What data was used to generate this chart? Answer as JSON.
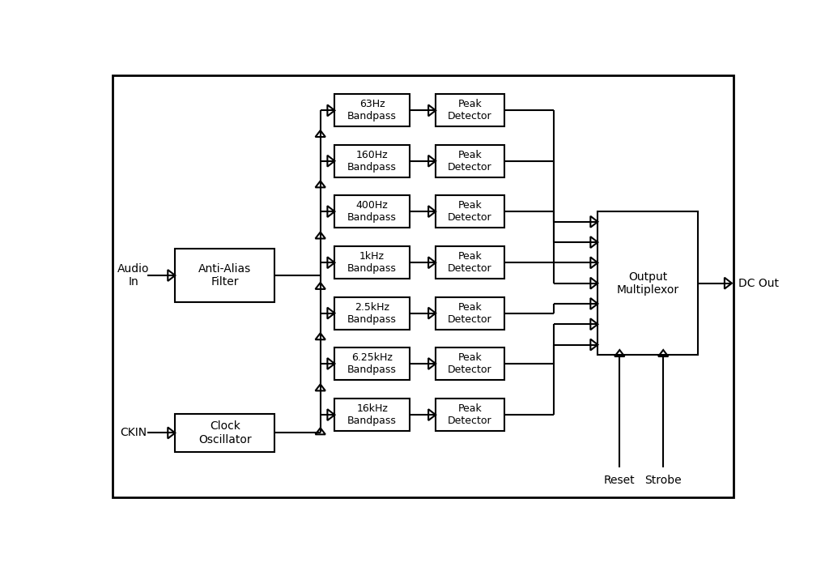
{
  "bg_color": "#ffffff",
  "border_color": "#000000",
  "line_color": "#000000",
  "box_color": "#ffffff",
  "text_color": "#000000",
  "bandpass_labels": [
    "63Hz\nBandpass",
    "160Hz\nBandpass",
    "400Hz\nBandpass",
    "1kHz\nBandpass",
    "2.5kHz\nBandpass",
    "6.25kHz\nBandpass",
    "16kHz\nBandpass"
  ],
  "peak_labels": [
    "Peak\nDetector",
    "Peak\nDetector",
    "Peak\nDetector",
    "Peak\nDetector",
    "Peak\nDetector",
    "Peak\nDetector",
    "Peak\nDetector"
  ],
  "aa_label": "Anti-Alias\nFilter",
  "co_label": "Clock\nOscillator",
  "mux_label": "Output\nMultiplexor",
  "audio_in": "Audio\nIn",
  "ckin": "CKIN",
  "dc_out": "DC Out",
  "reset": "Reset",
  "strobe": "Strobe",
  "fig_w": 10.2,
  "fig_h": 7.0,
  "dpi": 100
}
